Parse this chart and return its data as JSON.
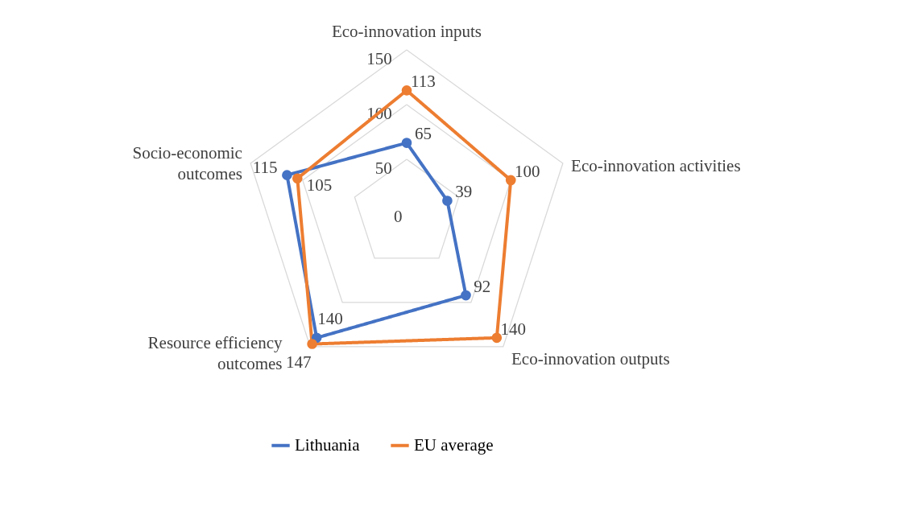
{
  "chart_data": {
    "type": "radar",
    "categories": [
      "Eco-innovation inputs",
      "Eco-innovation activities",
      "Eco-innovation outputs",
      "Resource efficiency outcomes",
      "Socio-economic outcomes"
    ],
    "series": [
      {
        "name": "Lithuania",
        "color": "#4472c4",
        "values": [
          65,
          39,
          92,
          140,
          115
        ]
      },
      {
        "name": "EU average",
        "color": "#ed7d31",
        "values": [
          113,
          100,
          140,
          147,
          105
        ]
      }
    ],
    "ylim": [
      0,
      150
    ],
    "yticks": [
      0,
      50,
      100,
      150
    ],
    "grid": true,
    "data_labels": true,
    "legend": "bottom",
    "marker": "circle",
    "line_style": "solid"
  }
}
